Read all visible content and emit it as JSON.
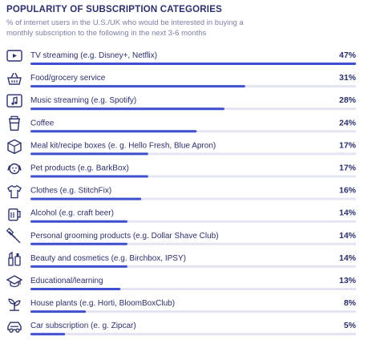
{
  "header": {
    "title": "POPULARITY OF SUBSCRIPTION CATEGORIES",
    "subtitle": "% of internet users in the U.S./UK who would be interested in buying a monthly subscription to the following in the next 3-6 months"
  },
  "colors": {
    "bar": "#3f4fd0",
    "track": "#e4e5f3",
    "text": "#2b2f6b",
    "subtitle": "#7d80a6",
    "icon": "#2b2f6b"
  },
  "chart_data": {
    "type": "bar",
    "orientation": "horizontal",
    "title": "POPULARITY OF SUBSCRIPTION CATEGORIES",
    "subtitle": "% of internet users in the U.S./UK who would be interested in buying a monthly subscription to the following in the next 3-6 months",
    "xlim": [
      0,
      47
    ],
    "unit": "%",
    "categories": [
      "TV streaming (e.g. Disney+, Netflix)",
      "Food/grocery service",
      "Music streaming (e.g. Spotify)",
      "Coffee",
      "Meal kit/recipe boxes (e. g. Hello Fresh, Blue Apron)",
      "Pet products (e.g. BarkBox)",
      "Clothes (e.g. StitchFix)",
      "Alcohol (e.g. craft beer)",
      "Personal grooming products (e.g. Dollar Shave Club)",
      "Beauty and cosmetics (e.g. Birchbox, IPSY)",
      "Educational/learning",
      "House plants (e.g. Horti, BloomBoxClub)",
      "Car subscription (e. g. Zipcar)"
    ],
    "values": [
      47,
      31,
      28,
      24,
      17,
      17,
      16,
      14,
      14,
      14,
      13,
      8,
      5
    ],
    "value_labels": [
      "47%",
      "31%",
      "28%",
      "24%",
      "17%",
      "17%",
      "16%",
      "14%",
      "14%",
      "14%",
      "13%",
      "8%",
      "5%"
    ],
    "icons": [
      "tv-icon",
      "basket-icon",
      "music-note-icon",
      "coffee-cup-icon",
      "box-icon",
      "dog-icon",
      "shirt-icon",
      "beer-icon",
      "razor-icon",
      "cosmetics-icon",
      "graduation-icon",
      "plant-icon",
      "car-icon"
    ]
  }
}
